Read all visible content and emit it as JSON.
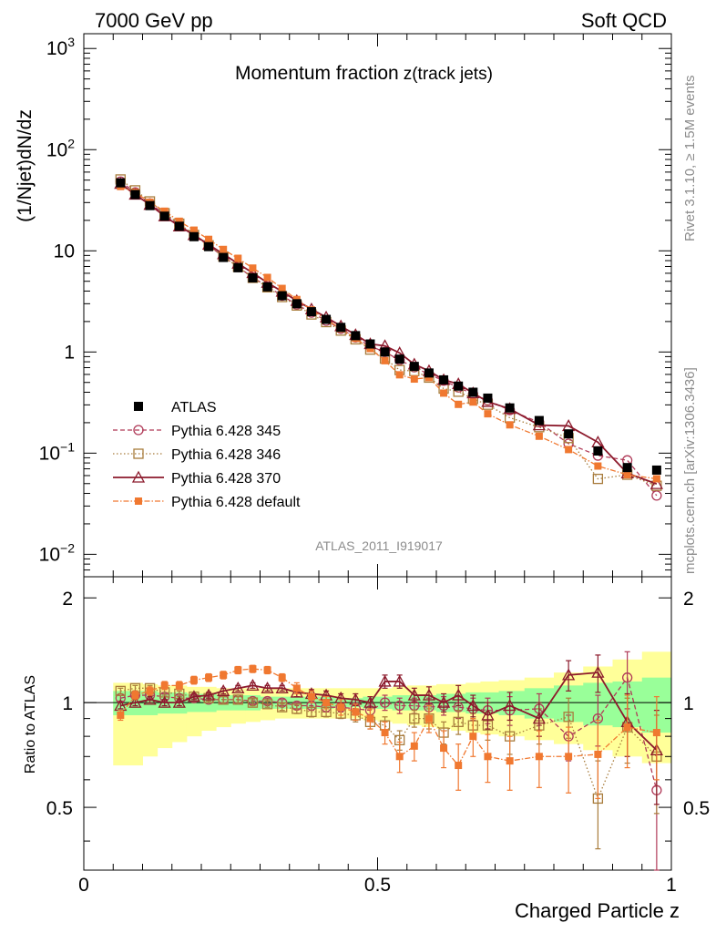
{
  "header": {
    "left": "7000 GeV pp",
    "right": "Soft QCD"
  },
  "side": {
    "rivet": "Rivet 3.1.10, ≥ 1.5M events",
    "mcplots": "mcplots.cern.ch [arXiv:1306.3436]"
  },
  "chart_data": {
    "type": "scatter",
    "title": "Momentum fraction",
    "title_suffix": "z(track jets)",
    "ylabel": "(1/Njet)dN/dz",
    "ratio_ylabel": "Ratio to ATLAS",
    "xlabel": "Charged Particle z",
    "analysis_id": "ATLAS_2011_I919017",
    "yscale": "log",
    "xlim": [
      0,
      1
    ],
    "ylim": [
      0.006,
      1400
    ],
    "ratio_ylim": [
      0.33,
      2.3
    ],
    "x_ticks": [
      "0",
      "0.5",
      "1"
    ],
    "y_ticks": [
      {
        "mant": "10",
        "exp": "3",
        "v": 1000
      },
      {
        "mant": "10",
        "exp": "2",
        "v": 100
      },
      {
        "mant": "10",
        "exp": "",
        "v": 10
      },
      {
        "mant": "1",
        "exp": "",
        "v": 1
      },
      {
        "mant": "10",
        "exp": "−1",
        "v": 0.1
      },
      {
        "mant": "10",
        "exp": "−2",
        "v": 0.01
      }
    ],
    "ratio_ticks": [
      "0.5",
      "1",
      "2"
    ],
    "x": [
      0.0625,
      0.0875,
      0.1125,
      0.1375,
      0.1625,
      0.1875,
      0.2125,
      0.2375,
      0.2625,
      0.2875,
      0.3125,
      0.3375,
      0.3625,
      0.3875,
      0.4125,
      0.4375,
      0.4625,
      0.4875,
      0.5125,
      0.5375,
      0.5625,
      0.5875,
      0.6125,
      0.6375,
      0.6625,
      0.6875,
      0.725,
      0.775,
      0.825,
      0.875,
      0.925,
      0.975
    ],
    "data_band": {
      "stat_ratio_lo": [
        0.92,
        0.92,
        0.92,
        0.93,
        0.93,
        0.94,
        0.94,
        0.95,
        0.95,
        0.95,
        0.96,
        0.96,
        0.96,
        0.96,
        0.96,
        0.97,
        0.97,
        0.96,
        0.96,
        0.95,
        0.95,
        0.95,
        0.94,
        0.94,
        0.93,
        0.93,
        0.92,
        0.9,
        0.88,
        0.86,
        0.85,
        0.82
      ],
      "stat_ratio_hi": [
        1.08,
        1.08,
        1.08,
        1.07,
        1.07,
        1.06,
        1.06,
        1.05,
        1.05,
        1.05,
        1.04,
        1.04,
        1.04,
        1.04,
        1.04,
        1.03,
        1.03,
        1.04,
        1.04,
        1.05,
        1.05,
        1.05,
        1.06,
        1.06,
        1.07,
        1.07,
        1.08,
        1.1,
        1.12,
        1.14,
        1.15,
        1.18
      ],
      "tot_ratio_lo": [
        0.66,
        0.66,
        0.7,
        0.74,
        0.77,
        0.8,
        0.83,
        0.85,
        0.87,
        0.88,
        0.89,
        0.9,
        0.9,
        0.9,
        0.9,
        0.9,
        0.9,
        0.89,
        0.88,
        0.87,
        0.86,
        0.85,
        0.84,
        0.83,
        0.82,
        0.81,
        0.8,
        0.78,
        0.76,
        0.73,
        0.7,
        0.67
      ],
      "tot_ratio_hi": [
        1.14,
        1.14,
        1.13,
        1.12,
        1.12,
        1.11,
        1.11,
        1.1,
        1.1,
        1.1,
        1.1,
        1.1,
        1.1,
        1.1,
        1.1,
        1.1,
        1.1,
        1.1,
        1.1,
        1.11,
        1.12,
        1.12,
        1.13,
        1.13,
        1.14,
        1.15,
        1.16,
        1.18,
        1.22,
        1.27,
        1.33,
        1.4
      ]
    },
    "series": [
      {
        "name": "ATLAS",
        "color": "#000000",
        "values": [
          47,
          36,
          28,
          22,
          17.5,
          13.8,
          11,
          8.6,
          6.8,
          5.4,
          4.4,
          3.6,
          3.0,
          2.5,
          2.1,
          1.75,
          1.45,
          1.2,
          1.0,
          0.85,
          0.72,
          0.62,
          0.53,
          0.46,
          0.4,
          0.35,
          0.28,
          0.21,
          0.155,
          0.105,
          0.072,
          0.068
        ]
      },
      {
        "name": "Pythia 6.428 345",
        "color": "#b03a58",
        "marker": "circle",
        "dash": "5,3",
        "ratio": [
          1.03,
          1.05,
          1.05,
          1.04,
          1.03,
          1.03,
          1.02,
          1.02,
          1.02,
          1.01,
          1.01,
          1.0,
          0.98,
          0.98,
          0.97,
          0.97,
          0.96,
          0.95,
          1.0,
          0.98,
          0.98,
          0.97,
          0.98,
          0.97,
          0.96,
          0.95,
          0.95,
          0.96,
          0.8,
          0.9,
          1.18,
          0.56
        ],
        "err": [
          0.02,
          0.02,
          0.02,
          0.02,
          0.02,
          0.02,
          0.02,
          0.02,
          0.02,
          0.02,
          0.02,
          0.02,
          0.02,
          0.03,
          0.03,
          0.03,
          0.04,
          0.04,
          0.05,
          0.05,
          0.05,
          0.06,
          0.06,
          0.07,
          0.07,
          0.08,
          0.09,
          0.1,
          0.12,
          0.15,
          0.22,
          0.25
        ]
      },
      {
        "name": "Pythia 6.428 346",
        "color": "#a87c3c",
        "marker": "square",
        "dash": "1.5,2.5",
        "ratio": [
          1.08,
          1.1,
          1.1,
          1.07,
          1.06,
          1.04,
          1.03,
          1.02,
          1.02,
          1.0,
          0.99,
          0.97,
          0.96,
          0.94,
          0.94,
          0.93,
          0.92,
          0.88,
          0.86,
          0.78,
          0.9,
          0.9,
          0.82,
          0.88,
          0.86,
          0.86,
          0.8,
          0.86,
          0.91,
          0.53,
          0.85,
          0.7
        ],
        "err": [
          0.02,
          0.02,
          0.02,
          0.02,
          0.02,
          0.02,
          0.02,
          0.02,
          0.02,
          0.02,
          0.02,
          0.02,
          0.03,
          0.03,
          0.03,
          0.03,
          0.04,
          0.04,
          0.05,
          0.05,
          0.05,
          0.06,
          0.06,
          0.07,
          0.07,
          0.08,
          0.09,
          0.1,
          0.12,
          0.15,
          0.18,
          0.22
        ]
      },
      {
        "name": "Pythia 6.428 370",
        "color": "#8c1a2c",
        "marker": "triangle",
        "dash": "",
        "ratio": [
          0.98,
          1.0,
          1.02,
          1.0,
          1.0,
          1.04,
          1.05,
          1.08,
          1.1,
          1.12,
          1.1,
          1.1,
          1.07,
          1.06,
          1.05,
          1.03,
          1.02,
          1.0,
          1.15,
          1.15,
          1.05,
          1.05,
          1.0,
          1.05,
          0.98,
          0.92,
          0.98,
          0.9,
          1.2,
          1.22,
          0.88,
          0.73
        ],
        "err": [
          0.02,
          0.02,
          0.02,
          0.02,
          0.02,
          0.02,
          0.02,
          0.02,
          0.02,
          0.02,
          0.02,
          0.02,
          0.03,
          0.03,
          0.03,
          0.03,
          0.04,
          0.04,
          0.05,
          0.05,
          0.05,
          0.06,
          0.06,
          0.07,
          0.07,
          0.08,
          0.09,
          0.1,
          0.12,
          0.15,
          0.18,
          0.22
        ]
      },
      {
        "name": "Pythia 6.428 default",
        "color": "#f07830",
        "marker": "filled-square",
        "dash": "6,2,1.5,2",
        "ratio": [
          0.92,
          1.05,
          1.08,
          1.12,
          1.12,
          1.16,
          1.18,
          1.2,
          1.24,
          1.25,
          1.24,
          1.18,
          1.1,
          1.04,
          1.0,
          0.97,
          0.94,
          0.9,
          0.82,
          0.7,
          0.75,
          0.9,
          0.74,
          0.66,
          0.8,
          0.7,
          0.68,
          0.7,
          0.7,
          0.71,
          0.85,
          0.82
        ],
        "err": [
          0.03,
          0.03,
          0.03,
          0.03,
          0.03,
          0.03,
          0.03,
          0.03,
          0.03,
          0.03,
          0.03,
          0.03,
          0.04,
          0.04,
          0.04,
          0.05,
          0.05,
          0.06,
          0.06,
          0.07,
          0.07,
          0.08,
          0.09,
          0.1,
          0.1,
          0.11,
          0.12,
          0.13,
          0.15,
          0.18,
          0.2,
          0.22
        ]
      }
    ]
  }
}
